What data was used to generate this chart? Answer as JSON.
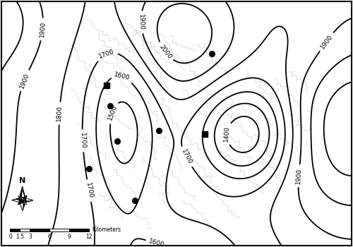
{
  "figsize": [
    5.0,
    3.5
  ],
  "dpi": 100,
  "bg_color": "#ffffff",
  "contour_color": "#000000",
  "contour_linewidth": 1.3,
  "contour_label_fontsize": 6.5,
  "xlim": [
    0,
    10
  ],
  "ylim": [
    0,
    7
  ],
  "circle_points": [
    [
      6.0,
      5.5
    ],
    [
      3.1,
      4.0
    ],
    [
      3.3,
      3.0
    ],
    [
      2.5,
      2.2
    ],
    [
      4.5,
      3.3
    ],
    [
      3.8,
      1.3
    ]
  ],
  "square_points": [
    [
      3.0,
      4.6
    ],
    [
      5.8,
      3.2
    ]
  ],
  "subcatchment_color": "#bbbbbb",
  "subcatchment_lw": 0.35
}
